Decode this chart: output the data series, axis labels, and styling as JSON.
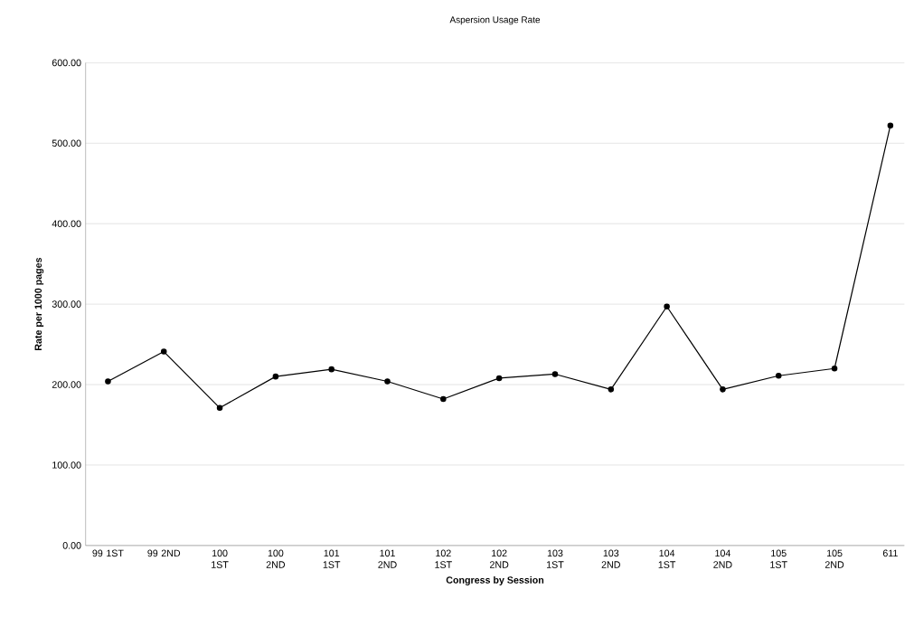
{
  "chart_data": {
    "type": "line",
    "title": "Aspersion Usage Rate",
    "xlabel": "Congress by Session",
    "ylabel": "Rate per 1000 pages",
    "categories": [
      "99 1ST",
      "99 2ND",
      "100 1ST",
      "100 2ND",
      "101 1ST",
      "101 2ND",
      "102 1ST",
      "102 2ND",
      "103 1ST",
      "103 2ND",
      "104 1ST",
      "104 2ND",
      "105 1ST",
      "105 2ND",
      "611"
    ],
    "series": [
      {
        "color": "#000000",
        "values": [
          204,
          241,
          171,
          210,
          219,
          204,
          182,
          208,
          213,
          194,
          297,
          194,
          211,
          220,
          522
        ]
      }
    ],
    "ylim": [
      0,
      600
    ],
    "yticks": [
      {
        "value": 0,
        "label": "0.00"
      },
      {
        "value": 100,
        "label": "100.00"
      },
      {
        "value": 200,
        "label": "200.00"
      },
      {
        "value": 300,
        "label": "300.00"
      },
      {
        "value": 400,
        "label": "400.00"
      },
      {
        "value": 500,
        "label": "500.00"
      },
      {
        "value": 600,
        "label": "600.00"
      }
    ],
    "grid": "y",
    "marker": "circle",
    "line_style": "solid"
  }
}
